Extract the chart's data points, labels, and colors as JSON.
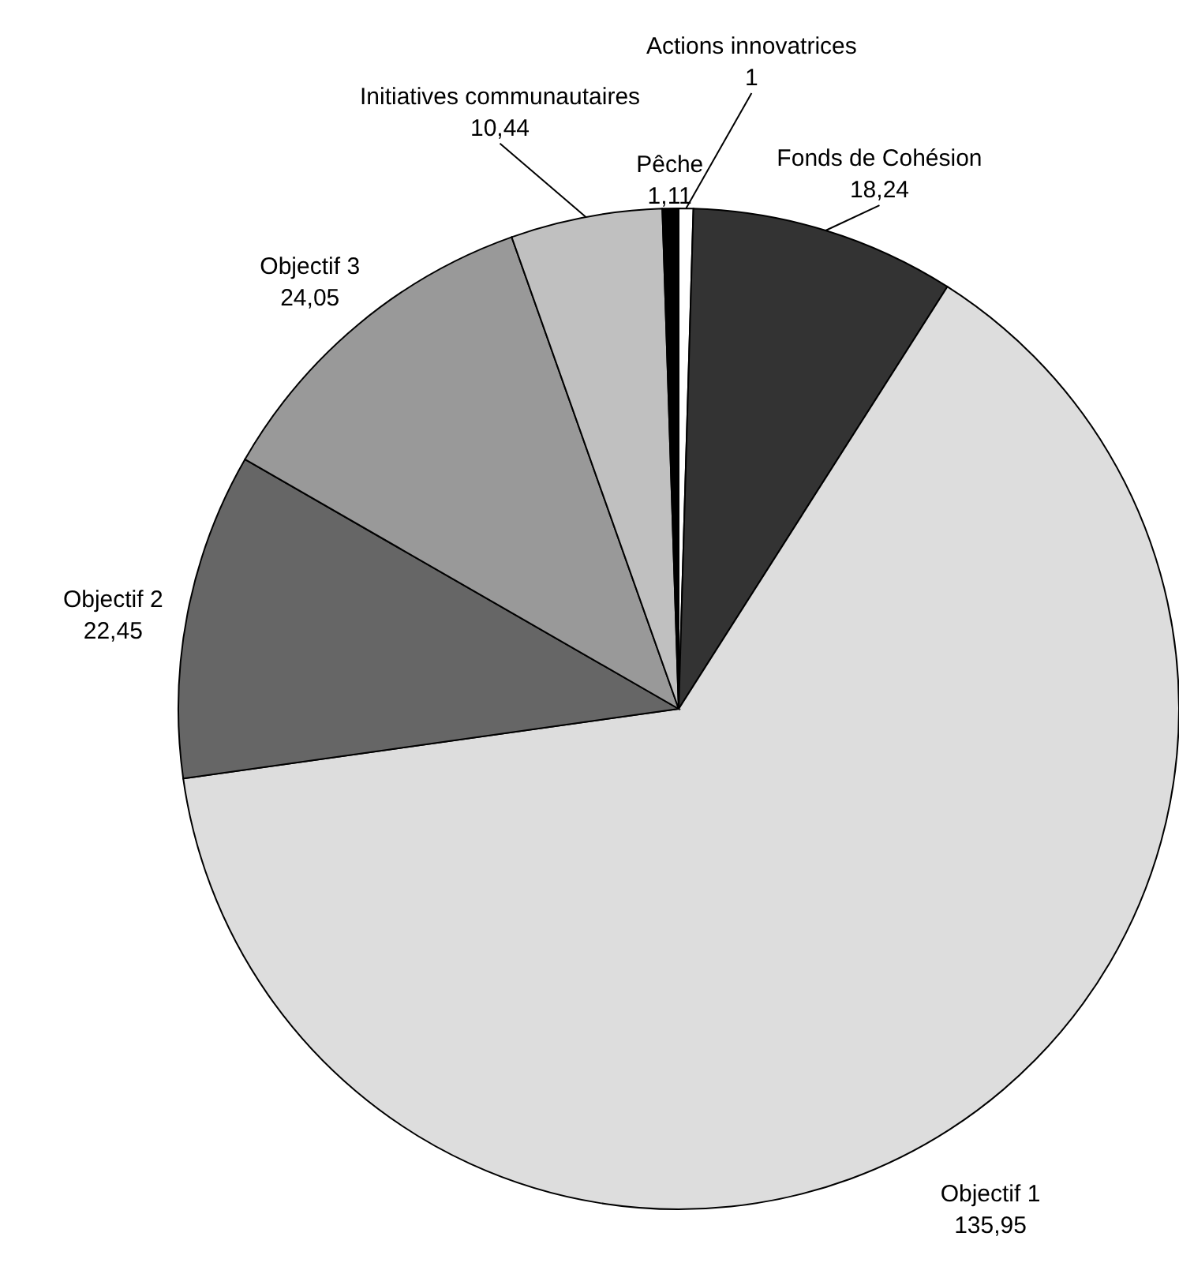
{
  "chart_data": {
    "type": "pie",
    "categories": [
      "Actions innovatrices",
      "Fonds de Cohésion",
      "Objectif 1",
      "Objectif 2",
      "Objectif 3",
      "Initiatives communautaires",
      "Pêche"
    ],
    "values": [
      1,
      18.24,
      135.95,
      22.45,
      24.05,
      10.44,
      1.11
    ],
    "value_labels": [
      "1",
      "18,24",
      "135,95",
      "22,45",
      "24,05",
      "10,44",
      "1,11"
    ],
    "colors": [
      "#ffffff",
      "#333333",
      "#dddddd",
      "#666666",
      "#999999",
      "#c0c0c0",
      "#000000"
    ]
  }
}
